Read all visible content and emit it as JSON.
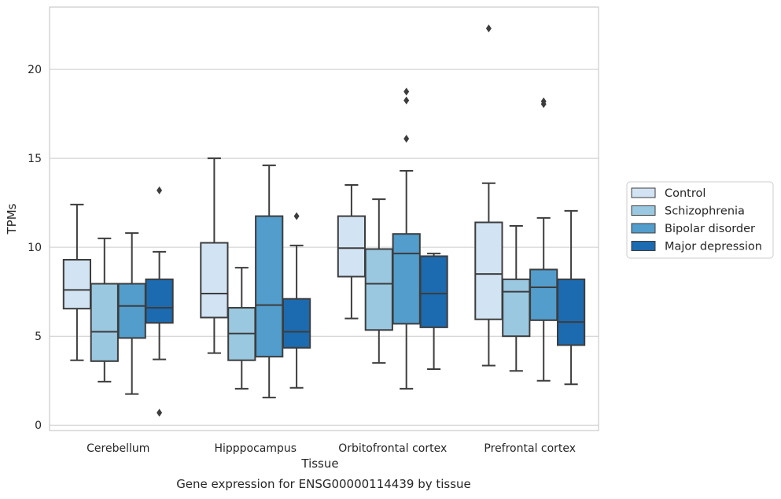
{
  "chart_data": {
    "type": "box",
    "caption": "Gene expression for ENSG00000114439 by tissue",
    "xlabel": "Tissue",
    "ylabel": "TPMs",
    "ylim": [
      -0.3,
      23.5
    ],
    "yticks": [
      0,
      5,
      10,
      15,
      20
    ],
    "grid": true,
    "legend_position": "right",
    "categories": [
      "Cerebellum",
      "Hipppocampus",
      "Orbitofrontal cortex",
      "Prefrontal cortex"
    ],
    "series": [
      {
        "name": "Control",
        "color": "#d2e3f3",
        "boxes": [
          {
            "whislo": 3.65,
            "q1": 6.55,
            "med": 7.6,
            "q3": 9.3,
            "whishi": 12.4,
            "fliers": []
          },
          {
            "whislo": 4.05,
            "q1": 6.05,
            "med": 7.4,
            "q3": 10.25,
            "whishi": 15.0,
            "fliers": []
          },
          {
            "whislo": 6.0,
            "q1": 8.35,
            "med": 9.95,
            "q3": 11.75,
            "whishi": 13.5,
            "fliers": []
          },
          {
            "whislo": 3.35,
            "q1": 5.95,
            "med": 8.5,
            "q3": 11.4,
            "whishi": 13.6,
            "fliers": [
              22.3
            ]
          }
        ]
      },
      {
        "name": "Schizophrenia",
        "color": "#9ac8e0",
        "boxes": [
          {
            "whislo": 2.45,
            "q1": 3.6,
            "med": 5.25,
            "q3": 7.95,
            "whishi": 10.5,
            "fliers": []
          },
          {
            "whislo": 2.05,
            "q1": 3.65,
            "med": 5.15,
            "q3": 6.6,
            "whishi": 8.85,
            "fliers": []
          },
          {
            "whislo": 3.5,
            "q1": 5.35,
            "med": 7.95,
            "q3": 9.9,
            "whishi": 12.7,
            "fliers": []
          },
          {
            "whislo": 3.05,
            "q1": 5.0,
            "med": 7.5,
            "q3": 8.2,
            "whishi": 11.2,
            "fliers": []
          }
        ]
      },
      {
        "name": "Bipolar disorder",
        "color": "#529dcc",
        "boxes": [
          {
            "whislo": 1.75,
            "q1": 4.9,
            "med": 6.7,
            "q3": 7.95,
            "whishi": 10.8,
            "fliers": []
          },
          {
            "whislo": 1.55,
            "q1": 3.85,
            "med": 6.75,
            "q3": 11.75,
            "whishi": 14.6,
            "fliers": []
          },
          {
            "whislo": 2.05,
            "q1": 5.7,
            "med": 9.65,
            "q3": 10.75,
            "whishi": 14.3,
            "fliers": [
              18.75,
              18.25,
              16.1
            ]
          },
          {
            "whislo": 2.5,
            "q1": 5.9,
            "med": 7.75,
            "q3": 8.75,
            "whishi": 11.65,
            "fliers": [
              18.2,
              18.05
            ]
          }
        ]
      },
      {
        "name": "Major depression",
        "color": "#1c6aaf",
        "boxes": [
          {
            "whislo": 3.7,
            "q1": 5.75,
            "med": 6.6,
            "q3": 8.2,
            "whishi": 9.75,
            "fliers": [
              13.2,
              0.7
            ]
          },
          {
            "whislo": 2.1,
            "q1": 4.35,
            "med": 5.25,
            "q3": 7.1,
            "whishi": 10.1,
            "fliers": [
              11.75
            ]
          },
          {
            "whislo": 3.15,
            "q1": 5.5,
            "med": 7.4,
            "q3": 9.5,
            "whishi": 9.65,
            "fliers": []
          },
          {
            "whislo": 2.3,
            "q1": 4.5,
            "med": 5.8,
            "q3": 8.2,
            "whishi": 12.05,
            "fliers": []
          }
        ]
      }
    ]
  }
}
